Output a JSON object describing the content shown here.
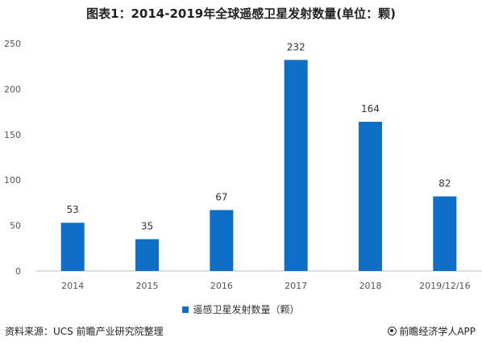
{
  "title": "图表1：2014-2019年全球遥感卫星发射数量(单位：颗)",
  "chart_data": {
    "type": "bar",
    "categories": [
      "2014",
      "2015",
      "2016",
      "2017",
      "2018",
      "2019/12/16"
    ],
    "series": [
      {
        "name": "遥感卫星发射数量（颗）",
        "values": [
          53,
          35,
          67,
          232,
          164,
          82
        ]
      }
    ],
    "ylim": [
      0,
      250
    ],
    "yticks": [
      0,
      50,
      100,
      150,
      200,
      250
    ],
    "grid": false,
    "legend_position": "bottom",
    "color": "#0f6fc6"
  },
  "footer": {
    "source": "资料来源：UCS 前瞻产业研究院整理",
    "brand": "前瞻经济学人APP"
  }
}
